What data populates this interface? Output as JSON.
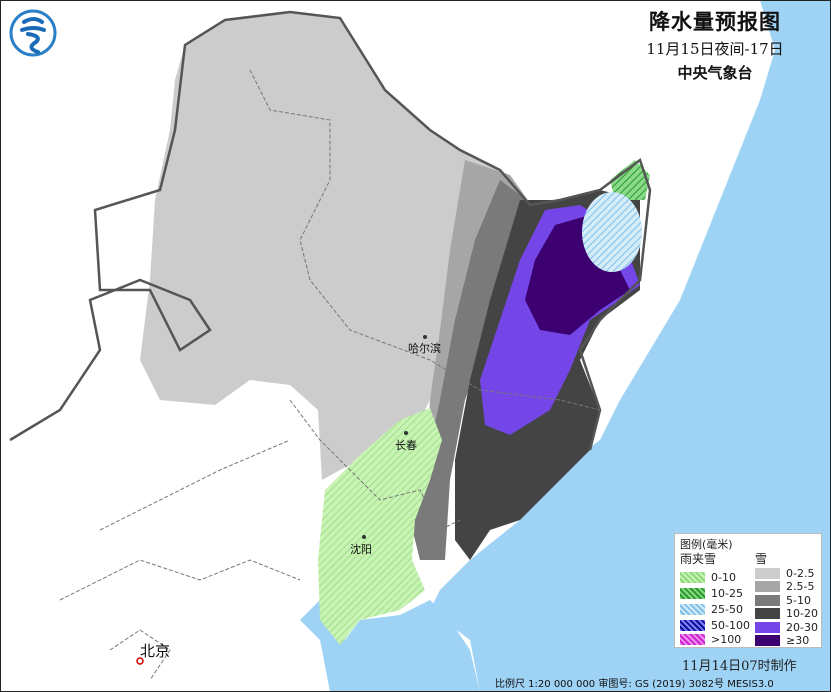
{
  "title": {
    "main": "降水量预报图",
    "period": "11月15日夜间-17日",
    "agency": "中央气象台"
  },
  "cities": [
    {
      "name": "哈尔滨"
    },
    {
      "name": "长春"
    },
    {
      "name": "沈阳"
    },
    {
      "name": "北京"
    }
  ],
  "legend": {
    "title": "图例(毫米)",
    "mixed_header": "雨夹雪",
    "snow_header": "雪",
    "mixed": [
      {
        "label": "0-10",
        "color": "#b8f0a0"
      },
      {
        "label": "10-25",
        "color": "#3cb83c"
      },
      {
        "label": "25-50",
        "color": "#88c8f0"
      },
      {
        "label": "50-100",
        "color": "#1010c0"
      },
      {
        "label": ">100",
        "color": "#e020e0"
      }
    ],
    "snow": [
      {
        "label": "0-2.5",
        "color": "#cccccc"
      },
      {
        "label": "2.5-5",
        "color": "#a6a6a6"
      },
      {
        "label": "5-10",
        "color": "#7a7a7a"
      },
      {
        "label": "10-20",
        "color": "#444444"
      },
      {
        "label": "20-30",
        "color": "#7446e8"
      },
      {
        "label": "≥30",
        "color": "#3c0070"
      }
    ]
  },
  "made_time": "11月14日07时制作",
  "footer": "比例尺 1:20 000 000  审图号: GS (2019) 3082号 MESIS3.0",
  "colors": {
    "sea": "#9fd3f5",
    "land": "#ffffff"
  }
}
